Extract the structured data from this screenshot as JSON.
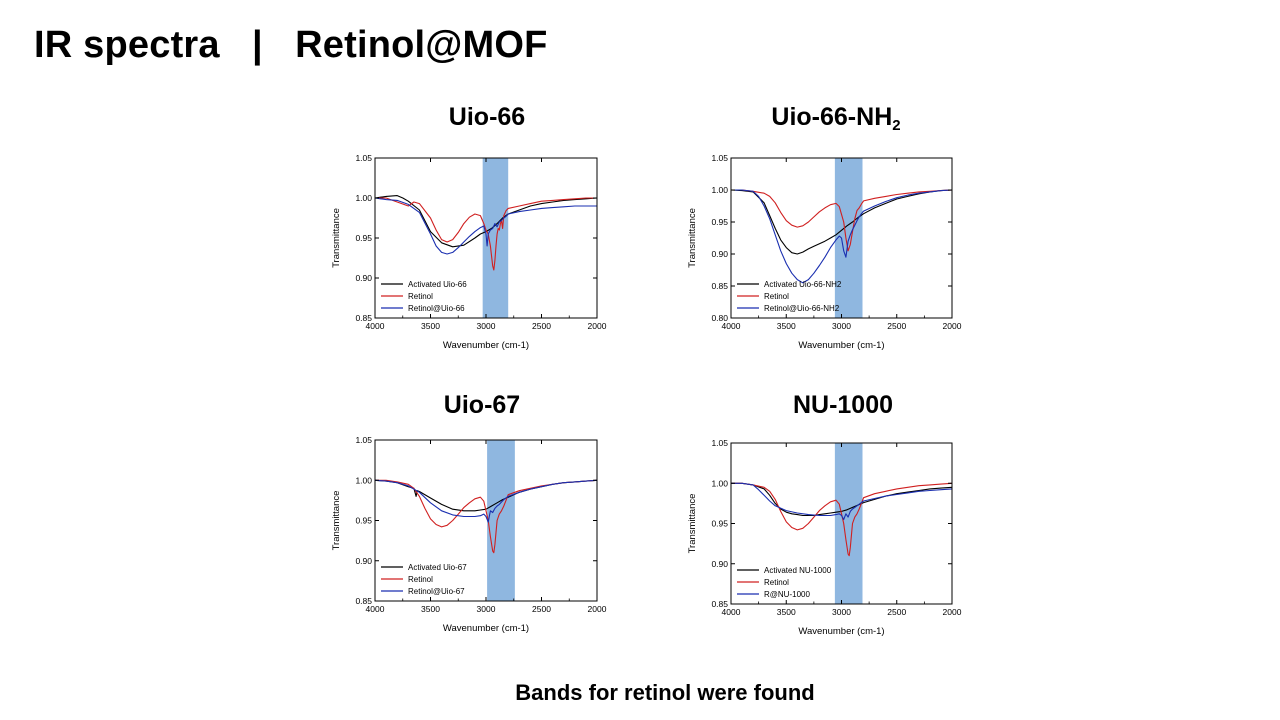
{
  "slide": {
    "title": "IR spectra   |   Retinol@MOF",
    "footer": "Bands for retinol were found"
  },
  "panels": [
    {
      "title_main": "Uio-66",
      "title_sub": ""
    },
    {
      "title_main": "Uio-66-NH",
      "title_sub": "2"
    },
    {
      "title_main": "Uio-67",
      "title_sub": ""
    },
    {
      "title_main": "NU-1000",
      "title_sub": ""
    }
  ],
  "chart_data": [
    {
      "type": "line",
      "title": "Uio-66",
      "xlabel": "Wavenumber (cm-1)",
      "ylabel": "Transmittance",
      "xlim": [
        4000,
        2000
      ],
      "ylim": [
        0.85,
        1.05
      ],
      "xticks": [
        4000,
        3500,
        3000,
        2500,
        2000
      ],
      "yticks": [
        0.85,
        0.9,
        0.95,
        1.0,
        1.05
      ],
      "ytick_labels": [
        "0.85",
        "0.90",
        "0.95",
        "1.00",
        "1.05"
      ],
      "highlight_band": [
        3030,
        2800
      ],
      "highlight_color": "#8fb7e0",
      "grid": false,
      "legend_position": "bottom-left",
      "series": [
        {
          "name": "Activated Uio-66",
          "color": "#000000",
          "x": [
            4000,
            3900,
            3800,
            3750,
            3700,
            3600,
            3500,
            3400,
            3300,
            3200,
            3100,
            3050,
            3000,
            2950,
            2900,
            2850,
            2800,
            2700,
            2600,
            2500,
            2400,
            2300,
            2200,
            2100,
            2000
          ],
          "y": [
            1.0,
            1.002,
            1.003,
            1.0,
            0.996,
            0.985,
            0.958,
            0.944,
            0.939,
            0.941,
            0.95,
            0.955,
            0.958,
            0.962,
            0.968,
            0.975,
            0.98,
            0.985,
            0.99,
            0.993,
            0.995,
            0.997,
            0.998,
            0.999,
            1.0
          ]
        },
        {
          "name": "Retinol",
          "color": "#d02020",
          "x": [
            4000,
            3900,
            3800,
            3700,
            3650,
            3600,
            3500,
            3450,
            3400,
            3350,
            3300,
            3250,
            3200,
            3150,
            3100,
            3050,
            3020,
            3000,
            2980,
            2960,
            2940,
            2930,
            2920,
            2910,
            2900,
            2890,
            2880,
            2870,
            2860,
            2850,
            2840,
            2820,
            2800,
            2700,
            2600,
            2500,
            2400,
            2300,
            2200,
            2100,
            2000
          ],
          "y": [
            1.0,
            1.0,
            0.995,
            0.99,
            0.995,
            0.993,
            0.975,
            0.96,
            0.948,
            0.945,
            0.948,
            0.957,
            0.968,
            0.976,
            0.98,
            0.978,
            0.968,
            0.96,
            0.955,
            0.94,
            0.915,
            0.91,
            0.922,
            0.94,
            0.955,
            0.962,
            0.96,
            0.968,
            0.972,
            0.962,
            0.978,
            0.984,
            0.987,
            0.99,
            0.993,
            0.996,
            0.997,
            0.998,
            0.999,
            1.0,
            1.0
          ]
        },
        {
          "name": "Retinol@Uio-66",
          "color": "#1a2fb0",
          "x": [
            4000,
            3900,
            3800,
            3700,
            3600,
            3500,
            3450,
            3400,
            3350,
            3300,
            3250,
            3200,
            3150,
            3100,
            3050,
            3020,
            3000,
            2990,
            2980,
            2960,
            2940,
            2920,
            2900,
            2880,
            2860,
            2840,
            2820,
            2800,
            2700,
            2600,
            2500,
            2400,
            2300,
            2200,
            2100,
            2000
          ],
          "y": [
            1.0,
            0.998,
            0.997,
            0.992,
            0.982,
            0.955,
            0.94,
            0.932,
            0.93,
            0.932,
            0.938,
            0.945,
            0.952,
            0.958,
            0.963,
            0.965,
            0.955,
            0.94,
            0.955,
            0.96,
            0.962,
            0.968,
            0.964,
            0.97,
            0.972,
            0.975,
            0.977,
            0.98,
            0.983,
            0.985,
            0.987,
            0.988,
            0.989,
            0.99,
            0.99,
            0.99
          ]
        }
      ]
    },
    {
      "type": "line",
      "title": "Uio-66-NH2",
      "xlabel": "Wavenumber (cm-1)",
      "ylabel": "Transmittance",
      "xlim": [
        4000,
        2000
      ],
      "ylim": [
        0.8,
        1.05
      ],
      "xticks": [
        4000,
        3500,
        3000,
        2500,
        2000
      ],
      "yticks": [
        0.8,
        0.85,
        0.9,
        0.95,
        1.0,
        1.05
      ],
      "ytick_labels": [
        "0.80",
        "0.85",
        "0.90",
        "0.95",
        "1.00",
        "1.05"
      ],
      "highlight_band": [
        3060,
        2810
      ],
      "highlight_color": "#8fb7e0",
      "grid": false,
      "legend_position": "bottom-left",
      "series": [
        {
          "name": "Activated Uio-66-NH2",
          "color": "#000000",
          "x": [
            4000,
            3900,
            3800,
            3700,
            3650,
            3600,
            3550,
            3500,
            3450,
            3400,
            3350,
            3300,
            3250,
            3200,
            3150,
            3100,
            3050,
            3000,
            2950,
            2900,
            2850,
            2800,
            2700,
            2600,
            2500,
            2400,
            2300,
            2200,
            2100,
            2000
          ],
          "y": [
            1.0,
            0.999,
            0.997,
            0.98,
            0.96,
            0.94,
            0.922,
            0.91,
            0.902,
            0.9,
            0.903,
            0.908,
            0.912,
            0.916,
            0.92,
            0.925,
            0.93,
            0.937,
            0.944,
            0.95,
            0.957,
            0.963,
            0.972,
            0.979,
            0.986,
            0.99,
            0.994,
            0.997,
            0.999,
            1.0
          ]
        },
        {
          "name": "Retinol",
          "color": "#d02020",
          "x": [
            4000,
            3900,
            3800,
            3700,
            3650,
            3600,
            3550,
            3500,
            3450,
            3400,
            3350,
            3300,
            3250,
            3200,
            3150,
            3100,
            3050,
            3020,
            3000,
            2980,
            2960,
            2940,
            2920,
            2900,
            2880,
            2860,
            2840,
            2820,
            2800,
            2700,
            2600,
            2500,
            2400,
            2300,
            2200,
            2100,
            2000
          ],
          "y": [
            1.0,
            1.0,
            0.998,
            0.995,
            0.99,
            0.98,
            0.965,
            0.952,
            0.945,
            0.942,
            0.944,
            0.95,
            0.958,
            0.966,
            0.972,
            0.977,
            0.979,
            0.974,
            0.962,
            0.95,
            0.925,
            0.905,
            0.915,
            0.935,
            0.955,
            0.968,
            0.972,
            0.978,
            0.983,
            0.987,
            0.99,
            0.993,
            0.995,
            0.997,
            0.998,
            0.999,
            1.0
          ]
        },
        {
          "name": "Retinol@Uio-66-NH2",
          "color": "#1a2fb0",
          "x": [
            4000,
            3900,
            3800,
            3750,
            3700,
            3650,
            3600,
            3550,
            3500,
            3450,
            3400,
            3350,
            3300,
            3250,
            3200,
            3150,
            3100,
            3050,
            3020,
            3000,
            2980,
            2960,
            2940,
            2920,
            2900,
            2880,
            2860,
            2840,
            2820,
            2800,
            2700,
            2600,
            2500,
            2400,
            2300,
            2200,
            2100,
            2000
          ],
          "y": [
            1.0,
            1.0,
            0.998,
            0.99,
            0.975,
            0.955,
            0.93,
            0.905,
            0.885,
            0.87,
            0.86,
            0.855,
            0.86,
            0.87,
            0.882,
            0.895,
            0.91,
            0.922,
            0.928,
            0.925,
            0.905,
            0.895,
            0.92,
            0.93,
            0.938,
            0.945,
            0.952,
            0.958,
            0.963,
            0.967,
            0.975,
            0.982,
            0.988,
            0.992,
            0.995,
            0.997,
            0.999,
            1.0
          ]
        }
      ]
    },
    {
      "type": "line",
      "title": "Uio-67",
      "xlabel": "Wavenumber (cm-1)",
      "ylabel": "Transmittance",
      "xlim": [
        4000,
        2000
      ],
      "ylim": [
        0.85,
        1.05
      ],
      "xticks": [
        4000,
        3500,
        3000,
        2500,
        2000
      ],
      "yticks": [
        0.85,
        0.9,
        0.95,
        1.0,
        1.05
      ],
      "ytick_labels": [
        "0.85",
        "0.90",
        "0.95",
        "1.00",
        "1.05"
      ],
      "highlight_band": [
        2990,
        2740
      ],
      "highlight_color": "#8fb7e0",
      "grid": false,
      "legend_position": "bottom-left",
      "series": [
        {
          "name": "Activated Uio-67",
          "color": "#000000",
          "x": [
            4000,
            3900,
            3800,
            3700,
            3650,
            3640,
            3630,
            3620,
            3600,
            3500,
            3400,
            3300,
            3200,
            3100,
            3050,
            3000,
            2950,
            2900,
            2850,
            2800,
            2700,
            2600,
            2500,
            2400,
            2300,
            2200,
            2100,
            2000
          ],
          "y": [
            1.0,
            0.999,
            0.997,
            0.992,
            0.99,
            0.985,
            0.98,
            0.987,
            0.986,
            0.978,
            0.97,
            0.964,
            0.962,
            0.962,
            0.963,
            0.964,
            0.968,
            0.972,
            0.976,
            0.979,
            0.985,
            0.989,
            0.992,
            0.995,
            0.997,
            0.998,
            0.999,
            1.0
          ]
        },
        {
          "name": "Retinol",
          "color": "#d02020",
          "x": [
            4000,
            3900,
            3800,
            3700,
            3650,
            3600,
            3550,
            3500,
            3450,
            3400,
            3350,
            3300,
            3250,
            3200,
            3150,
            3100,
            3050,
            3020,
            3000,
            2980,
            2960,
            2940,
            2930,
            2920,
            2910,
            2900,
            2880,
            2860,
            2840,
            2820,
            2800,
            2700,
            2600,
            2500,
            2400,
            2300,
            2200,
            2100,
            2000
          ],
          "y": [
            1.0,
            1.0,
            0.998,
            0.995,
            0.99,
            0.98,
            0.965,
            0.952,
            0.945,
            0.942,
            0.944,
            0.95,
            0.958,
            0.966,
            0.972,
            0.977,
            0.979,
            0.974,
            0.962,
            0.95,
            0.93,
            0.912,
            0.91,
            0.92,
            0.935,
            0.95,
            0.958,
            0.962,
            0.968,
            0.975,
            0.982,
            0.987,
            0.99,
            0.993,
            0.995,
            0.997,
            0.998,
            0.999,
            1.0
          ]
        },
        {
          "name": "Retinol@Uio-67",
          "color": "#1a2fb0",
          "x": [
            4000,
            3900,
            3800,
            3700,
            3600,
            3500,
            3400,
            3300,
            3200,
            3100,
            3050,
            3020,
            3000,
            2980,
            2960,
            2940,
            2920,
            2900,
            2880,
            2860,
            2840,
            2820,
            2800,
            2700,
            2600,
            2500,
            2400,
            2300,
            2200,
            2100,
            2000
          ],
          "y": [
            1.0,
            0.999,
            0.997,
            0.993,
            0.985,
            0.972,
            0.962,
            0.957,
            0.955,
            0.955,
            0.956,
            0.958,
            0.955,
            0.948,
            0.962,
            0.96,
            0.965,
            0.968,
            0.97,
            0.973,
            0.976,
            0.978,
            0.98,
            0.985,
            0.989,
            0.992,
            0.995,
            0.997,
            0.998,
            0.999,
            1.0
          ]
        }
      ]
    },
    {
      "type": "line",
      "title": "NU-1000",
      "xlabel": "Wavenumber (cm-1)",
      "ylabel": "Transmittance",
      "xlim": [
        4000,
        2000
      ],
      "ylim": [
        0.85,
        1.05
      ],
      "xticks": [
        4000,
        3500,
        3000,
        2500,
        2000
      ],
      "yticks": [
        0.85,
        0.9,
        0.95,
        1.0,
        1.05
      ],
      "ytick_labels": [
        "0.85",
        "0.90",
        "0.95",
        "1.00",
        "1.05"
      ],
      "highlight_band": [
        3060,
        2810
      ],
      "highlight_color": "#8fb7e0",
      "grid": false,
      "legend_position": "bottom-left",
      "series": [
        {
          "name": "Activated NU-1000",
          "color": "#000000",
          "x": [
            4000,
            3900,
            3800,
            3700,
            3650,
            3600,
            3550,
            3500,
            3450,
            3400,
            3350,
            3300,
            3250,
            3200,
            3150,
            3100,
            3050,
            3000,
            2950,
            2900,
            2850,
            2800,
            2700,
            2600,
            2500,
            2400,
            2300,
            2200,
            2100,
            2000
          ],
          "y": [
            1.0,
            1.0,
            0.998,
            0.993,
            0.985,
            0.975,
            0.968,
            0.964,
            0.962,
            0.961,
            0.96,
            0.96,
            0.96,
            0.961,
            0.962,
            0.963,
            0.964,
            0.965,
            0.967,
            0.97,
            0.973,
            0.976,
            0.98,
            0.984,
            0.987,
            0.989,
            0.991,
            0.993,
            0.994,
            0.995
          ]
        },
        {
          "name": "Retinol",
          "color": "#d02020",
          "x": [
            4000,
            3900,
            3800,
            3700,
            3650,
            3600,
            3550,
            3500,
            3450,
            3400,
            3350,
            3300,
            3250,
            3200,
            3150,
            3100,
            3050,
            3020,
            3000,
            2980,
            2960,
            2940,
            2930,
            2920,
            2910,
            2900,
            2880,
            2860,
            2840,
            2820,
            2800,
            2700,
            2600,
            2500,
            2400,
            2300,
            2200,
            2100,
            2000
          ],
          "y": [
            1.0,
            1.0,
            0.998,
            0.995,
            0.99,
            0.98,
            0.965,
            0.952,
            0.945,
            0.942,
            0.944,
            0.95,
            0.958,
            0.966,
            0.972,
            0.977,
            0.979,
            0.974,
            0.962,
            0.95,
            0.93,
            0.912,
            0.91,
            0.92,
            0.935,
            0.95,
            0.958,
            0.962,
            0.968,
            0.975,
            0.982,
            0.987,
            0.99,
            0.993,
            0.995,
            0.997,
            0.998,
            0.999,
            1.0
          ]
        },
        {
          "name": "R@NU-1000",
          "color": "#1a2fb0",
          "x": [
            4000,
            3900,
            3800,
            3750,
            3700,
            3650,
            3600,
            3500,
            3400,
            3300,
            3200,
            3100,
            3050,
            3020,
            3000,
            2980,
            2960,
            2940,
            2920,
            2900,
            2880,
            2860,
            2840,
            2820,
            2800,
            2700,
            2600,
            2500,
            2400,
            2300,
            2200,
            2100,
            2000
          ],
          "y": [
            1.0,
            1.0,
            0.998,
            0.992,
            0.985,
            0.978,
            0.972,
            0.966,
            0.963,
            0.961,
            0.96,
            0.96,
            0.961,
            0.962,
            0.96,
            0.955,
            0.962,
            0.958,
            0.965,
            0.968,
            0.97,
            0.972,
            0.974,
            0.976,
            0.978,
            0.981,
            0.984,
            0.986,
            0.988,
            0.99,
            0.991,
            0.992,
            0.993
          ]
        }
      ]
    }
  ]
}
